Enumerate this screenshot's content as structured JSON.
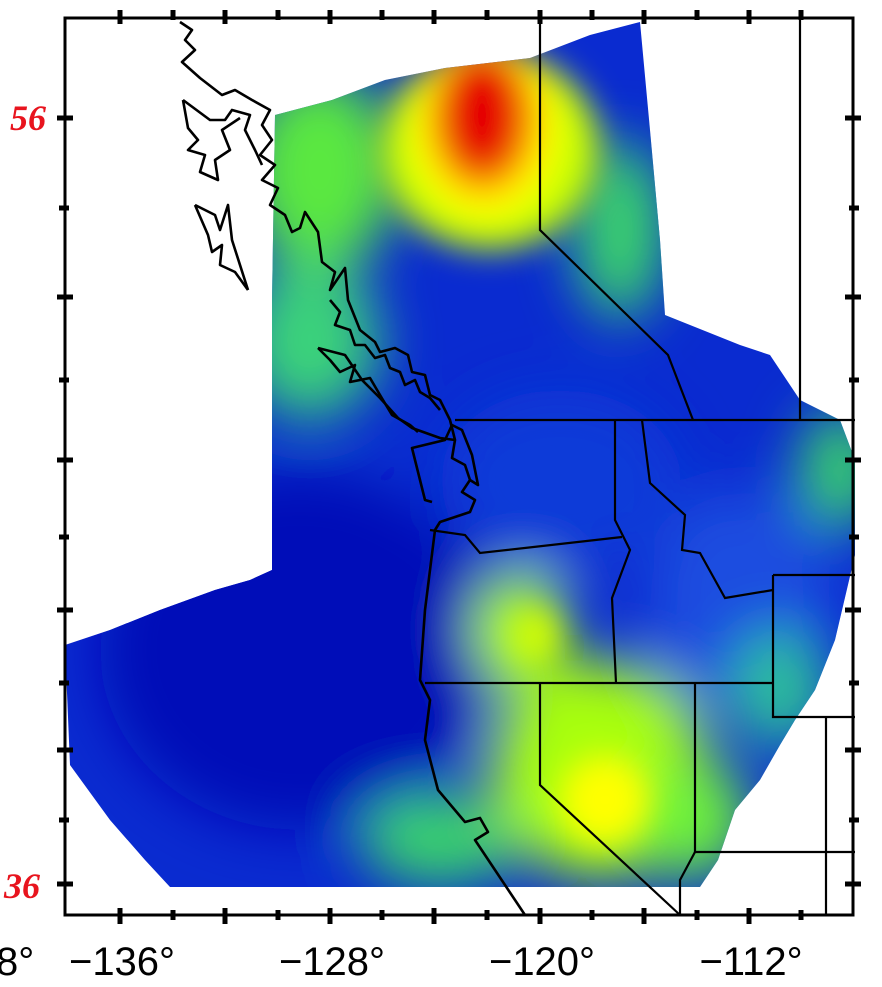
{
  "map": {
    "x_axis": {
      "tick_labels": [
        "8°",
        "−136°",
        "−128°",
        "−120°",
        "−112°"
      ]
    },
    "y_axis": {
      "handwritten_labels": [
        "56",
        "36"
      ]
    },
    "colors": {
      "low": "#0018c8",
      "mid_low": "#1f6ee0",
      "mid": "#36e05a",
      "mid_high": "#b8ff00",
      "high_yellow": "#ffff00",
      "high": "#e60000",
      "coastline": "#000000",
      "label_red": "#e8141e"
    },
    "features": [
      "colored heat map",
      "coastline",
      "state and province borders"
    ]
  }
}
